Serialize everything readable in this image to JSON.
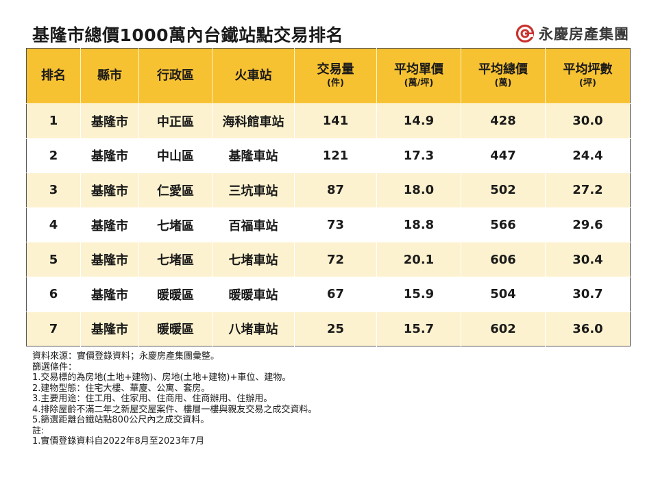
{
  "title": "基隆市總價1000萬內台鐵站點交易排名",
  "logo": {
    "text": "永慶房產集團",
    "icon": "yungching-logo-icon",
    "accent": "#c8322d"
  },
  "colors": {
    "header_bg": "#f7c232",
    "row_alt": "#fdf2cf"
  },
  "table": {
    "headers": [
      {
        "label": "排名",
        "sub": ""
      },
      {
        "label": "縣市",
        "sub": ""
      },
      {
        "label": "行政區",
        "sub": ""
      },
      {
        "label": "火車站",
        "sub": ""
      },
      {
        "label": "交易量",
        "sub": "(件)"
      },
      {
        "label": "平均單價",
        "sub": "(萬/坪)"
      },
      {
        "label": "平均總價",
        "sub": "(萬)"
      },
      {
        "label": "平均坪數",
        "sub": "(坪)"
      }
    ],
    "rows": [
      [
        "1",
        "基隆市",
        "中正區",
        "海科館車站",
        "141",
        "14.9",
        "428",
        "30.0"
      ],
      [
        "2",
        "基隆市",
        "中山區",
        "基隆車站",
        "121",
        "17.3",
        "447",
        "24.4"
      ],
      [
        "3",
        "基隆市",
        "仁愛區",
        "三坑車站",
        "87",
        "18.0",
        "502",
        "27.2"
      ],
      [
        "4",
        "基隆市",
        "七堵區",
        "百福車站",
        "73",
        "18.8",
        "566",
        "29.6"
      ],
      [
        "5",
        "基隆市",
        "七堵區",
        "七堵車站",
        "72",
        "20.1",
        "606",
        "30.4"
      ],
      [
        "6",
        "基隆市",
        "暖暖區",
        "暖暖車站",
        "67",
        "15.9",
        "504",
        "30.7"
      ],
      [
        "7",
        "基隆市",
        "暖暖區",
        "八堵車站",
        "25",
        "15.7",
        "602",
        "36.0"
      ]
    ]
  },
  "notes": [
    "資料來源：實價登錄資料；永慶房產集團彙整。",
    "篩選條件：",
    "1.交易標的為房地(土地+建物)、房地(土地+建物)+車位、建物。",
    "2.建物型態：住宅大樓、華廈、公寓、套房。",
    "3.主要用途：住工用、住家用、住商用、住商辦用、住辦用。",
    "4.排除屋齡不滿二年之新屋交屋案件、樓層一樓與親友交易之成交資料。",
    "5.篩選距離台鐵站點800公尺內之成交資料。",
    "註:",
    "1.實價登錄資料自2022年8月至2023年7月"
  ]
}
